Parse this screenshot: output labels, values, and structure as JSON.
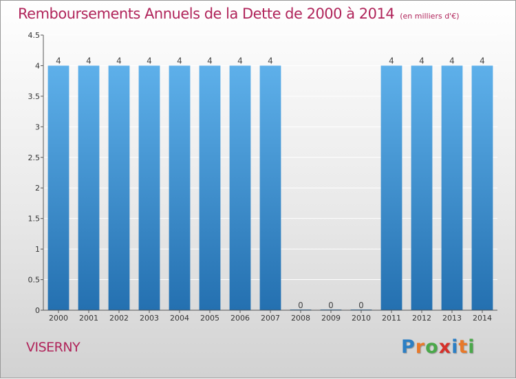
{
  "title": "Remboursements Annuels de la Dette de 2000 à 2014",
  "unit_label": "(en milliers d'€)",
  "commune": "VISERNY",
  "brand": {
    "letters": [
      "P",
      "r",
      "o",
      "x",
      "i",
      "t",
      "i"
    ],
    "colors": [
      "#2c7fc4",
      "#e8792a",
      "#4aa84a",
      "#d6302a",
      "#2c7fc4",
      "#e8792a",
      "#4aa84a"
    ]
  },
  "colors": {
    "title": "#b0245a",
    "bar_top": "#5eb0ea",
    "bar_bottom": "#2470b0"
  },
  "chart_data": {
    "type": "bar",
    "categories": [
      "2000",
      "2001",
      "2002",
      "2003",
      "2004",
      "2005",
      "2006",
      "2007",
      "2008",
      "2009",
      "2010",
      "2011",
      "2012",
      "2013",
      "2014"
    ],
    "values": [
      4,
      4,
      4,
      4,
      4,
      4,
      4,
      4,
      0,
      0,
      0,
      4,
      4,
      4,
      4
    ],
    "data_labels": [
      "4",
      "4",
      "4",
      "4",
      "4",
      "4",
      "4",
      "4",
      "0",
      "0",
      "0",
      "4",
      "4",
      "4",
      "4"
    ],
    "ylim": [
      0,
      4.5
    ],
    "yticks": [
      0,
      0.5,
      1,
      1.5,
      2,
      2.5,
      3,
      3.5,
      4,
      4.5
    ],
    "ytick_labels": [
      "0",
      "0.5",
      "1",
      "1.5",
      "2",
      "2.5",
      "3",
      "3.5",
      "4",
      "4.5"
    ],
    "grid": true,
    "title": "Remboursements Annuels de la Dette de 2000 à 2014"
  }
}
